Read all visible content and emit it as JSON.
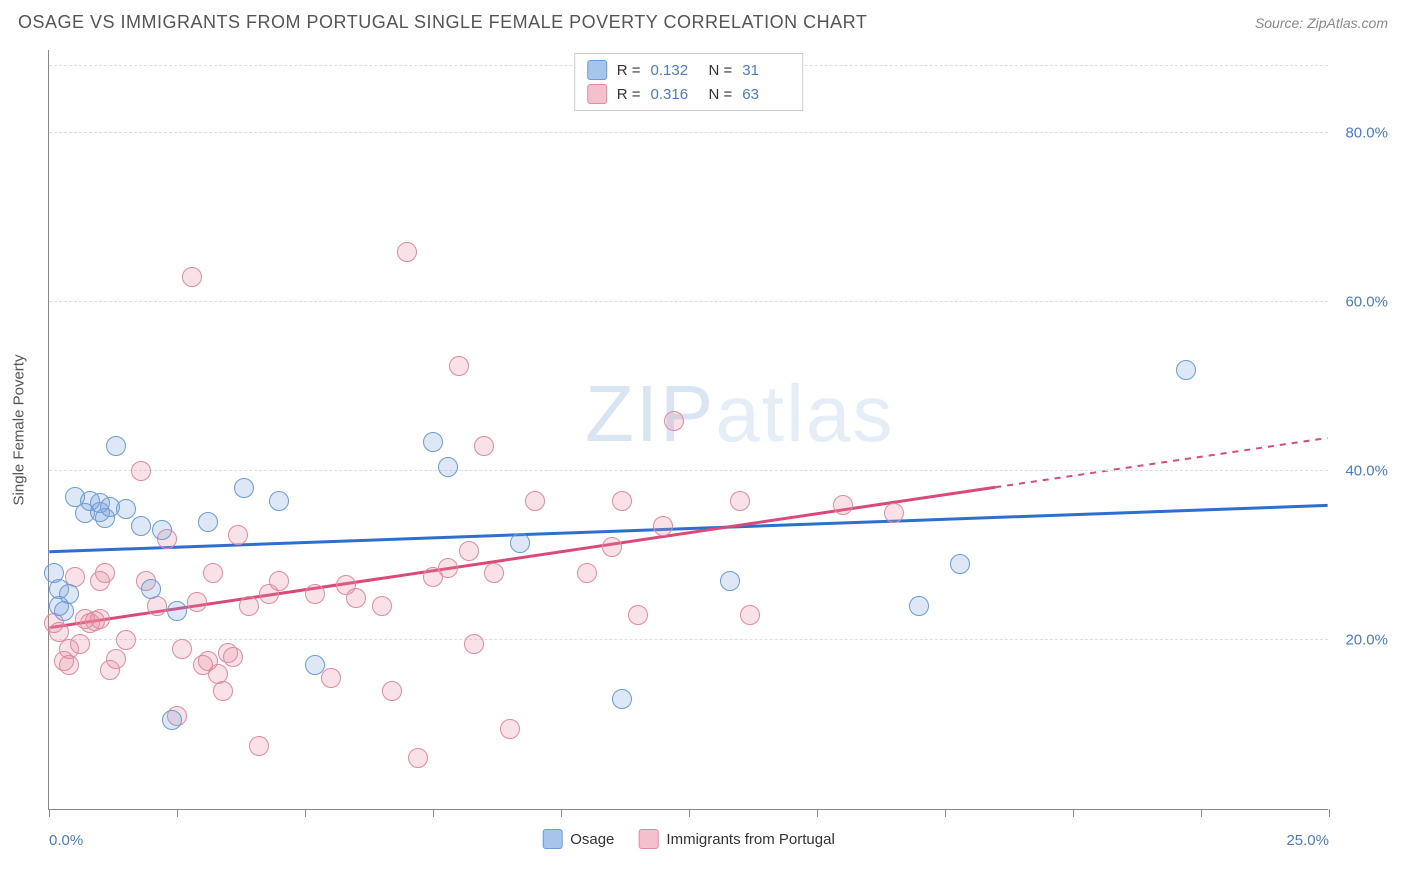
{
  "title": "OSAGE VS IMMIGRANTS FROM PORTUGAL SINGLE FEMALE POVERTY CORRELATION CHART",
  "source": "Source: ZipAtlas.com",
  "watermark": "ZIPatlas",
  "chart": {
    "type": "scatter",
    "background_color": "#ffffff",
    "grid_color": "#dddddd",
    "axis_color": "#888888",
    "tick_label_color": "#4a7ac7",
    "axis_title_color": "#555555",
    "title_color": "#555555",
    "title_fontsize": 18,
    "label_fontsize": 15,
    "tick_fontsize": 15,
    "y_axis_title": "Single Female Poverty",
    "xlim": [
      0,
      25
    ],
    "ylim": [
      0,
      90
    ],
    "x_ticks": [
      0,
      2.5,
      5,
      7.5,
      10,
      12.5,
      15,
      17.5,
      20,
      22.5,
      25
    ],
    "x_tick_labels": {
      "0": "0.0%",
      "25": "25.0%"
    },
    "y_ticks": [
      20,
      40,
      60,
      80
    ],
    "y_tick_labels": {
      "20": "20.0%",
      "40": "40.0%",
      "60": "60.0%",
      "80": "80.0%"
    },
    "y_grid_top": 88,
    "point_radius": 10,
    "point_stroke_width": 1.5,
    "point_fill_opacity": 0.25,
    "trend_line_width": 3,
    "series": [
      {
        "name": "Osage",
        "color_fill": "rgba(120,160,220,0.25)",
        "color_stroke": "#6a9cd8",
        "swatch_fill": "#a7c5ea",
        "swatch_stroke": "#6a9cd8",
        "trend_color": "#2d6fd0",
        "R": "0.132",
        "N": "31",
        "trend": {
          "x1": 0,
          "y1": 30.5,
          "x2": 25,
          "y2": 36.0,
          "solid_until_x": 25
        },
        "points": [
          [
            0.1,
            28
          ],
          [
            0.2,
            26
          ],
          [
            0.2,
            24
          ],
          [
            0.3,
            23.5
          ],
          [
            0.4,
            25.5
          ],
          [
            0.5,
            37
          ],
          [
            0.7,
            35
          ],
          [
            0.8,
            36.5
          ],
          [
            1.0,
            36.2
          ],
          [
            1.0,
            35.2
          ],
          [
            1.1,
            34.5
          ],
          [
            1.2,
            35.8
          ],
          [
            1.3,
            43
          ],
          [
            1.5,
            35.5
          ],
          [
            1.8,
            33.5
          ],
          [
            2.0,
            26
          ],
          [
            2.2,
            33.0
          ],
          [
            2.4,
            10.5
          ],
          [
            2.5,
            23.5
          ],
          [
            3.1,
            34
          ],
          [
            3.8,
            38
          ],
          [
            4.5,
            36.5
          ],
          [
            5.2,
            17
          ],
          [
            7.5,
            43.5
          ],
          [
            7.8,
            40.5
          ],
          [
            9.2,
            31.5
          ],
          [
            11.2,
            13
          ],
          [
            13.3,
            27
          ],
          [
            17.0,
            24
          ],
          [
            17.8,
            29
          ],
          [
            22.2,
            52
          ]
        ]
      },
      {
        "name": "Immigrants from Portugal",
        "color_fill": "rgba(230,140,160,0.25)",
        "color_stroke": "#e08aa0",
        "swatch_fill": "#f5c0cd",
        "swatch_stroke": "#e08aa0",
        "trend_color": "#d94a78",
        "R": "0.316",
        "N": "63",
        "trend": {
          "x1": 0,
          "y1": 21.5,
          "x2": 25,
          "y2": 44.0,
          "solid_until_x": 18.5
        },
        "points": [
          [
            0.1,
            22
          ],
          [
            0.2,
            21
          ],
          [
            0.3,
            17.5
          ],
          [
            0.4,
            19
          ],
          [
            0.4,
            17
          ],
          [
            0.5,
            27.5
          ],
          [
            0.6,
            19.5
          ],
          [
            0.7,
            22.5
          ],
          [
            0.8,
            22
          ],
          [
            0.9,
            22.3
          ],
          [
            1.0,
            22.5
          ],
          [
            1.0,
            27
          ],
          [
            1.1,
            28
          ],
          [
            1.2,
            16.5
          ],
          [
            1.3,
            17.8
          ],
          [
            1.5,
            20
          ],
          [
            1.8,
            40
          ],
          [
            1.9,
            27
          ],
          [
            2.1,
            24
          ],
          [
            2.3,
            32
          ],
          [
            2.5,
            11
          ],
          [
            2.6,
            19
          ],
          [
            2.8,
            63
          ],
          [
            2.9,
            24.5
          ],
          [
            3.0,
            17
          ],
          [
            3.1,
            17.5
          ],
          [
            3.2,
            28
          ],
          [
            3.3,
            16
          ],
          [
            3.4,
            14
          ],
          [
            3.5,
            18.5
          ],
          [
            3.6,
            18
          ],
          [
            3.7,
            32.5
          ],
          [
            3.9,
            24
          ],
          [
            4.1,
            7.5
          ],
          [
            4.3,
            25.5
          ],
          [
            4.5,
            27
          ],
          [
            5.2,
            25.5
          ],
          [
            5.5,
            15.5
          ],
          [
            5.8,
            26.5
          ],
          [
            6.0,
            25
          ],
          [
            6.5,
            24
          ],
          [
            6.7,
            14
          ],
          [
            7.0,
            66
          ],
          [
            7.2,
            6
          ],
          [
            7.5,
            27.5
          ],
          [
            7.8,
            28.5
          ],
          [
            8.0,
            52.5
          ],
          [
            8.2,
            30.5
          ],
          [
            8.3,
            19.5
          ],
          [
            8.5,
            43
          ],
          [
            8.7,
            28
          ],
          [
            9.0,
            9.5
          ],
          [
            9.5,
            36.5
          ],
          [
            10.5,
            28
          ],
          [
            11.0,
            31
          ],
          [
            11.2,
            36.5
          ],
          [
            11.5,
            23
          ],
          [
            12.0,
            33.5
          ],
          [
            12.2,
            46
          ],
          [
            13.5,
            36.5
          ],
          [
            13.7,
            23
          ],
          [
            15.5,
            36
          ],
          [
            16.5,
            35
          ]
        ]
      }
    ],
    "legend_top_labels": {
      "R_prefix": "R =",
      "N_prefix": "N ="
    },
    "legend_bottom": [
      {
        "label": "Osage",
        "swatch": 0
      },
      {
        "label": "Immigrants from Portugal",
        "swatch": 1
      }
    ]
  }
}
